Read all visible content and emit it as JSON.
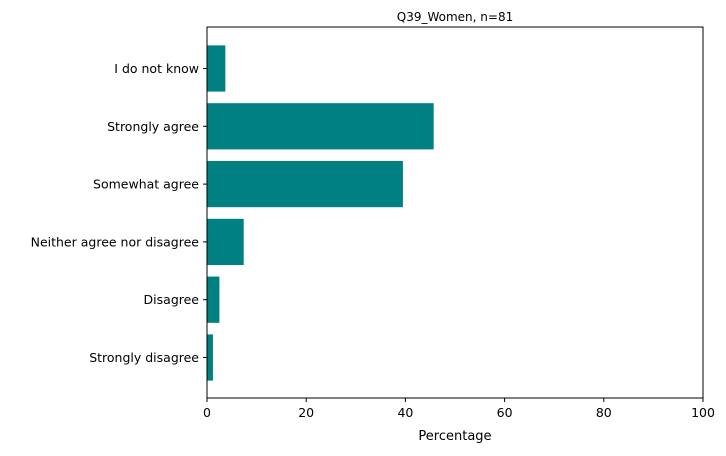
{
  "chart_data": {
    "type": "bar",
    "orientation": "horizontal",
    "title": "Q39_Women, n=81",
    "xlabel": "Percentage",
    "ylabel": "",
    "xlim": [
      0,
      100
    ],
    "xticks": [
      0,
      20,
      40,
      60,
      80,
      100
    ],
    "categories": [
      "Strongly disagree",
      "Disagree",
      "Neither agree nor disagree",
      "Somewhat agree",
      "Strongly agree",
      "I do not know"
    ],
    "values": [
      1.2,
      2.5,
      7.4,
      39.5,
      45.7,
      3.7
    ],
    "bar_color": "#008080",
    "grid": false,
    "legend": "none"
  }
}
